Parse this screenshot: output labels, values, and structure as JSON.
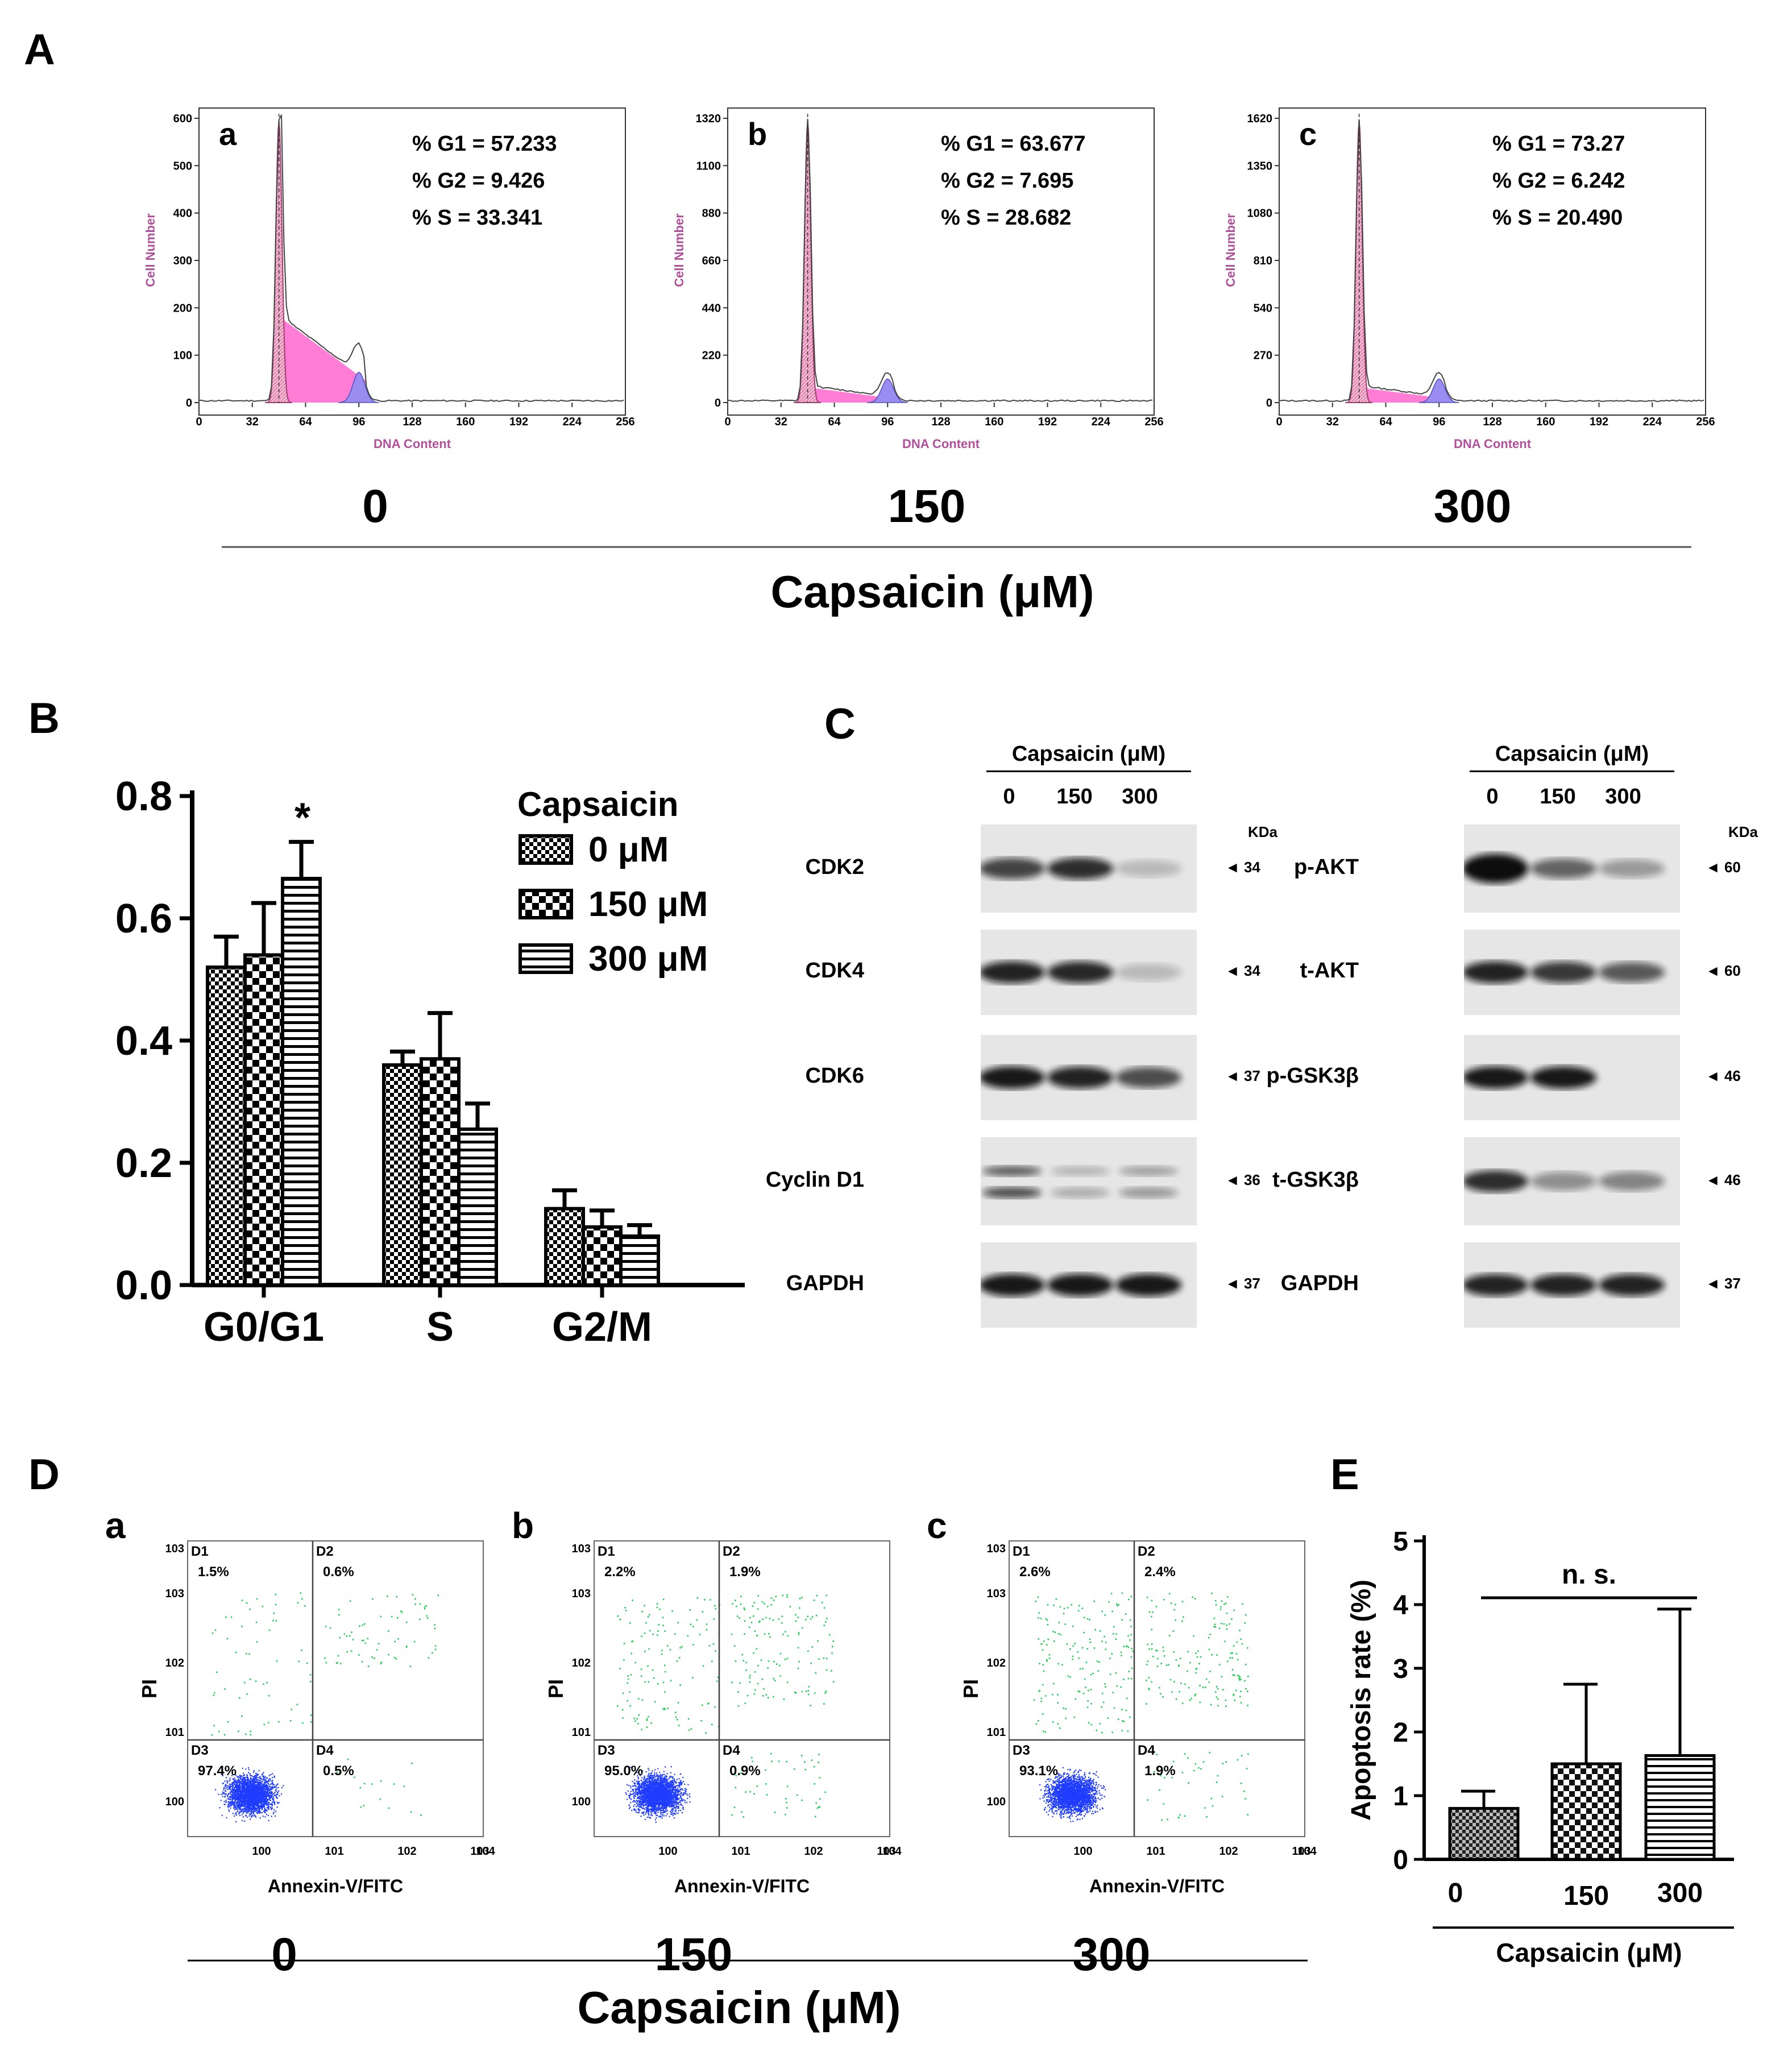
{
  "panels": {
    "A": {
      "letter": "A",
      "xlabel": "DNA Content",
      "ylabel": "Cell Number",
      "xticks": [
        "0",
        "32",
        "64",
        "96",
        "128",
        "160",
        "192",
        "224",
        "256"
      ],
      "group_label": "Capsaicin (μM)",
      "plots": [
        {
          "sub": "a",
          "dose": "0",
          "yticks": [
            "0",
            "100",
            "200",
            "300",
            "400",
            "500",
            "600"
          ],
          "stats": [
            "% G1 = 57.233",
            "% G2 = 9.426",
            "% S = 33.341"
          ]
        },
        {
          "sub": "b",
          "dose": "150",
          "yticks": [
            "0",
            "220",
            "440",
            "660",
            "880",
            "1100",
            "1320"
          ],
          "stats": [
            "% G1 = 63.677",
            "% G2 = 7.695",
            "% S = 28.682"
          ]
        },
        {
          "sub": "c",
          "dose": "300",
          "yticks": [
            "0",
            "270",
            "540",
            "810",
            "1080",
            "1350",
            "1620"
          ],
          "stats": [
            "% G1 = 73.27",
            "% G2 = 6.242",
            "% S = 20.490"
          ]
        }
      ]
    },
    "B": {
      "letter": "B",
      "legend_title": "Capsaicin",
      "significance": "*"
    },
    "C": {
      "letter": "C",
      "header": "Capsaicin (μM)",
      "doses": [
        "0",
        "150",
        "300"
      ],
      "kda_title": "KDa",
      "left_blots": [
        {
          "name": "CDK2",
          "kda": "34"
        },
        {
          "name": "CDK4",
          "kda": "34"
        },
        {
          "name": "CDK6",
          "kda": "37"
        },
        {
          "name": "Cyclin D1",
          "kda": "36"
        },
        {
          "name": "GAPDH",
          "kda": "37"
        }
      ],
      "right_blots": [
        {
          "name": "p-AKT",
          "kda": "60"
        },
        {
          "name": "t-AKT",
          "kda": "60"
        },
        {
          "name": "p-GSK3β",
          "kda": "46"
        },
        {
          "name": "t-GSK3β",
          "kda": "46"
        },
        {
          "name": "GAPDH",
          "kda": "37"
        }
      ]
    },
    "D": {
      "letter": "D",
      "xlabel": "Annexin-V/FITC",
      "ylabel": "PI",
      "group_label": "Capsaicin (μM)",
      "plots": [
        {
          "sub": "a",
          "dose": "0",
          "q": [
            "D1",
            "D2",
            "D3",
            "D4"
          ],
          "pct": [
            "1.5%",
            "0.6%",
            "97.4%",
            "0.5%"
          ]
        },
        {
          "sub": "b",
          "dose": "150",
          "q": [
            "D1",
            "D2",
            "D3",
            "D4"
          ],
          "pct": [
            "2.2%",
            "1.9%",
            "95.0%",
            "0.9%"
          ]
        },
        {
          "sub": "c",
          "dose": "300",
          "q": [
            "D1",
            "D2",
            "D3",
            "D4"
          ],
          "pct": [
            "2.6%",
            "2.4%",
            "93.1%",
            "1.9%"
          ]
        }
      ]
    },
    "E": {
      "letter": "E",
      "significance": "n. s."
    }
  },
  "chart_data": [
    {
      "type": "bar",
      "categories": [
        "G0/G1",
        "S",
        "G2/M"
      ],
      "series": [
        {
          "name": "0 μM",
          "values": [
            0.52,
            0.36,
            0.125
          ],
          "errors": [
            0.05,
            0.022,
            0.03
          ]
        },
        {
          "name": "150 μM",
          "values": [
            0.54,
            0.37,
            0.095
          ],
          "errors": [
            0.085,
            0.075,
            0.027
          ]
        },
        {
          "name": "300 μM",
          "values": [
            0.665,
            0.255,
            0.08
          ],
          "errors": [
            0.06,
            0.042,
            0.018
          ]
        }
      ],
      "yticks": [
        "0.0",
        "0.2",
        "0.4",
        "0.6",
        "0.8"
      ],
      "ylim": [
        0,
        0.8
      ],
      "legend_title": "Capsaicin",
      "legend": "top-right"
    },
    {
      "type": "bar",
      "categories": [
        "0",
        "150",
        "300"
      ],
      "values": [
        0.8,
        1.5,
        1.63
      ],
      "errors": [
        0.27,
        1.25,
        2.3
      ],
      "ylabel": "Apoptosis rate (%)",
      "xlabel": "Capsaicin (μM)",
      "yticks": [
        "0",
        "1",
        "2",
        "3",
        "4",
        "5"
      ],
      "ylim": [
        0,
        5
      ]
    }
  ],
  "colors": {
    "g1": "#f4a6c8",
    "s": "#ff66cc",
    "g2": "#9a8cf0",
    "dots_low": "#1f3cff",
    "dots_high": "#22cc55",
    "axis_pink": "#b0509a"
  }
}
